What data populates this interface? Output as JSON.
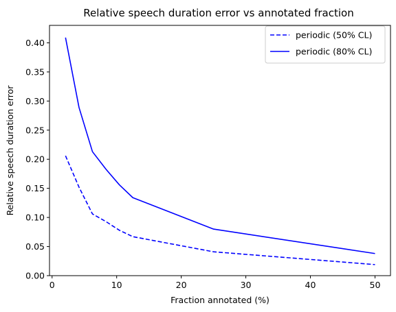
{
  "chart_data": {
    "type": "line",
    "title": "Relative speech duration error vs annotated fraction",
    "xlabel": "Fraction annotated (%)",
    "ylabel": "Relative speech duration error",
    "xlim": [
      -0.4,
      52.4
    ],
    "ylim": [
      0.0,
      0.43
    ],
    "x_ticks": [
      0,
      10,
      20,
      30,
      40,
      50
    ],
    "x_tick_labels": [
      "0",
      "10",
      "20",
      "30",
      "40",
      "50"
    ],
    "y_ticks": [
      0.0,
      0.05,
      0.1,
      0.15,
      0.2,
      0.25,
      0.3,
      0.35,
      0.4
    ],
    "y_tick_labels": [
      "0.00",
      "0.05",
      "0.10",
      "0.15",
      "0.20",
      "0.25",
      "0.30",
      "0.35",
      "0.40"
    ],
    "grid": false,
    "legend_position": "top-right",
    "series": [
      {
        "name": "periodic (50% CL)",
        "color": "#0000ff",
        "style": "dashed",
        "x": [
          2.08,
          4.17,
          6.25,
          8.33,
          10.42,
          12.5,
          25,
          50
        ],
        "values": [
          0.206,
          0.152,
          0.106,
          0.093,
          0.078,
          0.067,
          0.041,
          0.019
        ]
      },
      {
        "name": "periodic (80% CL)",
        "color": "#0000ff",
        "style": "solid",
        "x": [
          2.08,
          4.17,
          6.25,
          8.33,
          10.42,
          12.5,
          25,
          50
        ],
        "values": [
          0.409,
          0.289,
          0.213,
          0.183,
          0.156,
          0.134,
          0.08,
          0.038
        ]
      }
    ]
  }
}
